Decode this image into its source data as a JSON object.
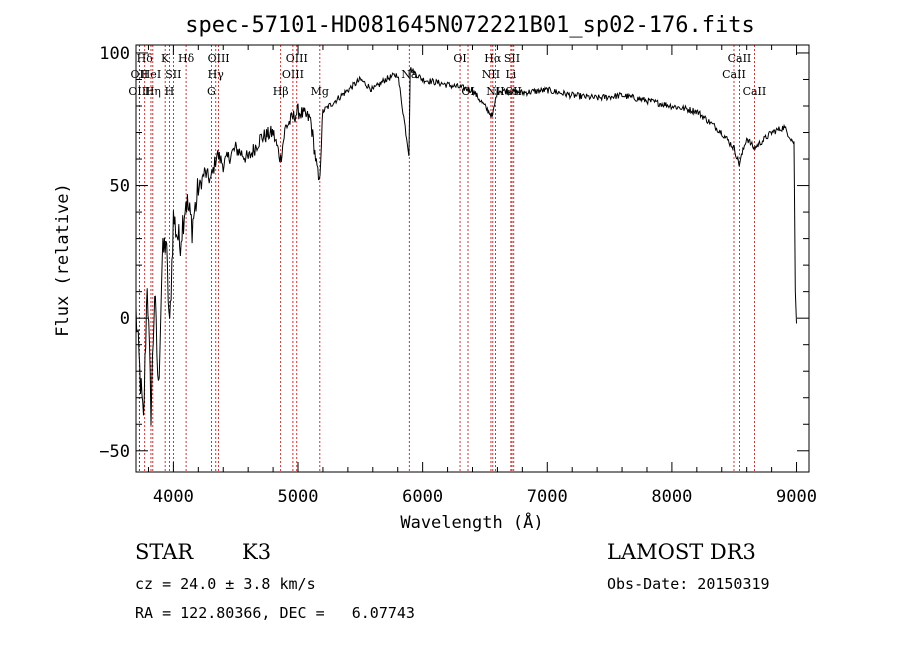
{
  "chart_data": {
    "type": "line",
    "title": "spec-57101-HD081645N072221B01_sp02-176.fits",
    "xlabel": "Wavelength (Å)",
    "ylabel": "Flux (relative)",
    "xlim": [
      3700,
      9100
    ],
    "ylim": [
      -58,
      103
    ],
    "x_ticks": [
      4000,
      5000,
      6000,
      7000,
      8000,
      9000
    ],
    "x_tick_labels": [
      "4000",
      "5000",
      "6000",
      "7000",
      "8000",
      "9000"
    ],
    "y_ticks": [
      -50,
      0,
      50,
      100
    ],
    "y_tick_labels": [
      "−50",
      "0",
      "50",
      "100"
    ],
    "series": [
      {
        "name": "spectrum",
        "x": [
          3700,
          3730,
          3760,
          3790,
          3820,
          3850,
          3880,
          3910,
          3940,
          3970,
          4000,
          4050,
          4100,
          4150,
          4200,
          4250,
          4300,
          4350,
          4400,
          4500,
          4600,
          4700,
          4800,
          4860,
          4900,
          5000,
          5100,
          5170,
          5200,
          5300,
          5400,
          5500,
          5600,
          5700,
          5800,
          5890,
          5900,
          6000,
          6200,
          6400,
          6560,
          6600,
          6800,
          7000,
          7200,
          7400,
          7600,
          7800,
          8000,
          8200,
          8400,
          8500,
          8540,
          8600,
          8660,
          8800,
          8900,
          8980,
          8990,
          9000
        ],
        "values": [
          2,
          -20,
          -40,
          15,
          -35,
          10,
          -28,
          22,
          30,
          -5,
          38,
          28,
          45,
          35,
          48,
          55,
          52,
          62,
          58,
          64,
          60,
          68,
          70,
          60,
          72,
          78,
          75,
          50,
          78,
          82,
          86,
          90,
          86,
          90,
          92,
          62,
          94,
          90,
          88,
          86,
          76,
          86,
          85,
          86,
          84,
          83,
          84,
          82,
          80,
          78,
          70,
          64,
          58,
          68,
          64,
          70,
          72,
          66,
          10,
          -2
        ]
      }
    ],
    "spectral_lines": [
      {
        "label": "Hδ",
        "wavelength": 3770,
        "row": 1
      },
      {
        "label": "OII",
        "wavelength": 3727,
        "row": 2
      },
      {
        "label": "OIII",
        "wavelength": 3727,
        "row": 3
      },
      {
        "label": "HeI",
        "wavelength": 3820,
        "row": 2
      },
      {
        "label": "Hη",
        "wavelength": 3835,
        "row": 3
      },
      {
        "label": "K",
        "wavelength": 3934,
        "row": 1
      },
      {
        "label": "SII",
        "wavelength": 4000,
        "row": 2
      },
      {
        "label": "H",
        "wavelength": 3968,
        "row": 3
      },
      {
        "label": "Hδ",
        "wavelength": 4102,
        "row": 1
      },
      {
        "label": "OIII",
        "wavelength": 4363,
        "row": 1
      },
      {
        "label": "Hγ",
        "wavelength": 4340,
        "row": 2
      },
      {
        "label": "G",
        "wavelength": 4305,
        "row": 3
      },
      {
        "label": "Hβ",
        "wavelength": 4861,
        "row": 3
      },
      {
        "label": "OIII",
        "wavelength": 4990,
        "row": 1
      },
      {
        "label": "OIII",
        "wavelength": 4959,
        "row": 2
      },
      {
        "label": "Mg",
        "wavelength": 5175,
        "row": 3
      },
      {
        "label": "Na",
        "wavelength": 5893,
        "row": 2
      },
      {
        "label": "OI",
        "wavelength": 6300,
        "row": 1
      },
      {
        "label": "OI",
        "wavelength": 6364,
        "row": 3
      },
      {
        "label": "Hα",
        "wavelength": 6563,
        "row": 1
      },
      {
        "label": "NII",
        "wavelength": 6548,
        "row": 2
      },
      {
        "label": "NII",
        "wavelength": 6584,
        "row": 3
      },
      {
        "label": "SII",
        "wavelength": 6717,
        "row": 1
      },
      {
        "label": "Li",
        "wavelength": 6708,
        "row": 2
      },
      {
        "label": "SII",
        "wavelength": 6731,
        "row": 3
      },
      {
        "label": "CaII",
        "wavelength": 8542,
        "row": 1
      },
      {
        "label": "CaII",
        "wavelength": 8498,
        "row": 2
      },
      {
        "label": "CaII",
        "wavelength": 8662,
        "row": 3
      }
    ]
  },
  "info": {
    "class": "STAR",
    "subclass": "K3",
    "survey": "LAMOST DR3",
    "cz": "cz = 24.0 ± 3.8 km/s",
    "obs_date": "Obs-Date: 20150319",
    "coords": "RA = 122.80366, DEC =   6.07743"
  }
}
